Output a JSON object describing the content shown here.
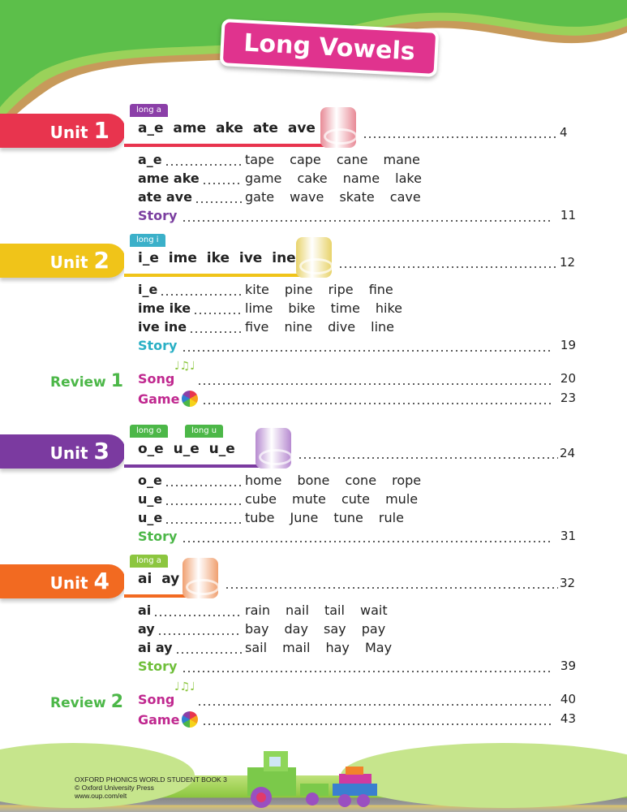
{
  "title": "Long Vowels",
  "units": [
    {
      "unit_word": "Unit",
      "num": "1",
      "tags": [
        "long a"
      ],
      "sounds": "a_e ame ake ate ave",
      "page": "4",
      "band": "#e8344e",
      "tag_color": "#8b3fa8",
      "roll": "#e88a96",
      "strip_end": 405,
      "rows": [
        {
          "key": "a_e",
          "words": "tape cape cane mane"
        },
        {
          "key": "ame ake",
          "words": "game cake name lake"
        },
        {
          "key": "ate ave",
          "words": "gate wave skate cave"
        }
      ],
      "story": {
        "label": "Story",
        "page": "11",
        "color": "#7b3fa0"
      }
    },
    {
      "unit_word": "Unit",
      "num": "2",
      "tags": [
        "long i"
      ],
      "sounds": "i_e ime ike ive ine",
      "page": "12",
      "band": "#f0c419",
      "tag_color": "#3bb0c9",
      "roll": "#e8d36a",
      "strip_end": 375,
      "rows": [
        {
          "key": "i_e",
          "words": "kite pine ripe fine"
        },
        {
          "key": "ime ike",
          "words": "lime bike time hike"
        },
        {
          "key": "ive ine",
          "words": "five nine dive line"
        }
      ],
      "story": {
        "label": "Story",
        "page": "19",
        "color": "#2ab0c5"
      },
      "review": {
        "label": "Review",
        "num": "1",
        "song": "Song",
        "song_page": "20",
        "game": "Game",
        "game_page": "23"
      }
    },
    {
      "unit_word": "Unit",
      "num": "3",
      "tags": [
        "long o",
        "long u"
      ],
      "sounds": "o_e  u_e u_e",
      "page": "24",
      "band": "#7b3aa0",
      "tag_color": "#4cb748",
      "roll": "#b68ad0",
      "strip_end": 325,
      "rows": [
        {
          "key": "o_e",
          "words": "home bone cone rope"
        },
        {
          "key": "u_e",
          "words": "cube mute cute mule"
        },
        {
          "key": "u_e",
          "words": "tube June tune rule"
        }
      ],
      "story": {
        "label": "Story",
        "page": "31",
        "color": "#4cb748"
      }
    },
    {
      "unit_word": "Unit",
      "num": "4",
      "tags": [
        "long a"
      ],
      "sounds": "ai ay",
      "page": "32",
      "band": "#f26a21",
      "tag_color": "#8cc63f",
      "roll": "#f0a070",
      "strip_end": 235,
      "rows": [
        {
          "key": "ai",
          "words": "rain nail tail wait"
        },
        {
          "key": "ay",
          "words": "bay day say pay"
        },
        {
          "key": "ai ay",
          "words": "sail mail hay May"
        }
      ],
      "story": {
        "label": "Story",
        "page": "39",
        "color": "#6fbf3a"
      },
      "review": {
        "label": "Review",
        "num": "2",
        "song": "Song",
        "song_page": "40",
        "game": "Game",
        "game_page": "43"
      }
    }
  ],
  "song_color": "#c0288f",
  "footer": {
    "line1": "OXFORD PHONICS WORLD STUDENT BOOK 3",
    "line2": "© Oxford University Press",
    "line3": "www.oup.com/elt"
  }
}
